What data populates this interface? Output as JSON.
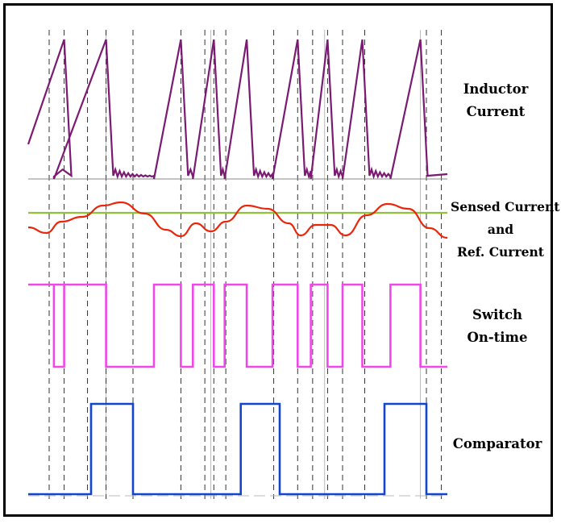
{
  "labels": {
    "inductor": [
      "Inductor",
      "Current"
    ],
    "sensed": [
      "Sensed Current",
      "and",
      "Ref. Current"
    ],
    "switch": [
      "Switch",
      "On-time"
    ],
    "comparator": [
      "Comparator"
    ]
  },
  "colors": {
    "inductor_trace": "#7B1A73",
    "sensed_trace": "#E8260C",
    "reference_trace": "#8FC23A",
    "switch_trace": "#F048E8",
    "comparator_trace": "#1245C8",
    "dashed_marker": "#333333",
    "solid_grid": "#BBBBBB"
  },
  "timing": {
    "switch_on": [
      [
        0,
        0.6
      ],
      [
        0.43,
        1.3
      ],
      [
        2.1,
        2.55
      ],
      [
        2.75,
        3.1
      ],
      [
        3.28,
        3.65
      ],
      [
        4.08,
        4.5
      ],
      [
        4.72,
        5.0
      ],
      [
        5.25,
        5.58
      ],
      [
        6.05,
        6.55
      ]
    ],
    "comparator_high": [
      [
        1.05,
        1.75
      ],
      [
        3.55,
        4.2
      ],
      [
        5.95,
        6.65
      ]
    ],
    "dashed_markers": [
      0.35,
      0.6,
      0.99,
      1.3,
      1.75,
      2.55,
      2.95,
      3.1,
      3.3,
      4.1,
      4.5,
      4.75,
      5.0,
      5.25,
      5.62,
      6.65,
      6.9
    ],
    "solid_gridlines": [
      1.3,
      3.05,
      4.95,
      6.55
    ]
  }
}
